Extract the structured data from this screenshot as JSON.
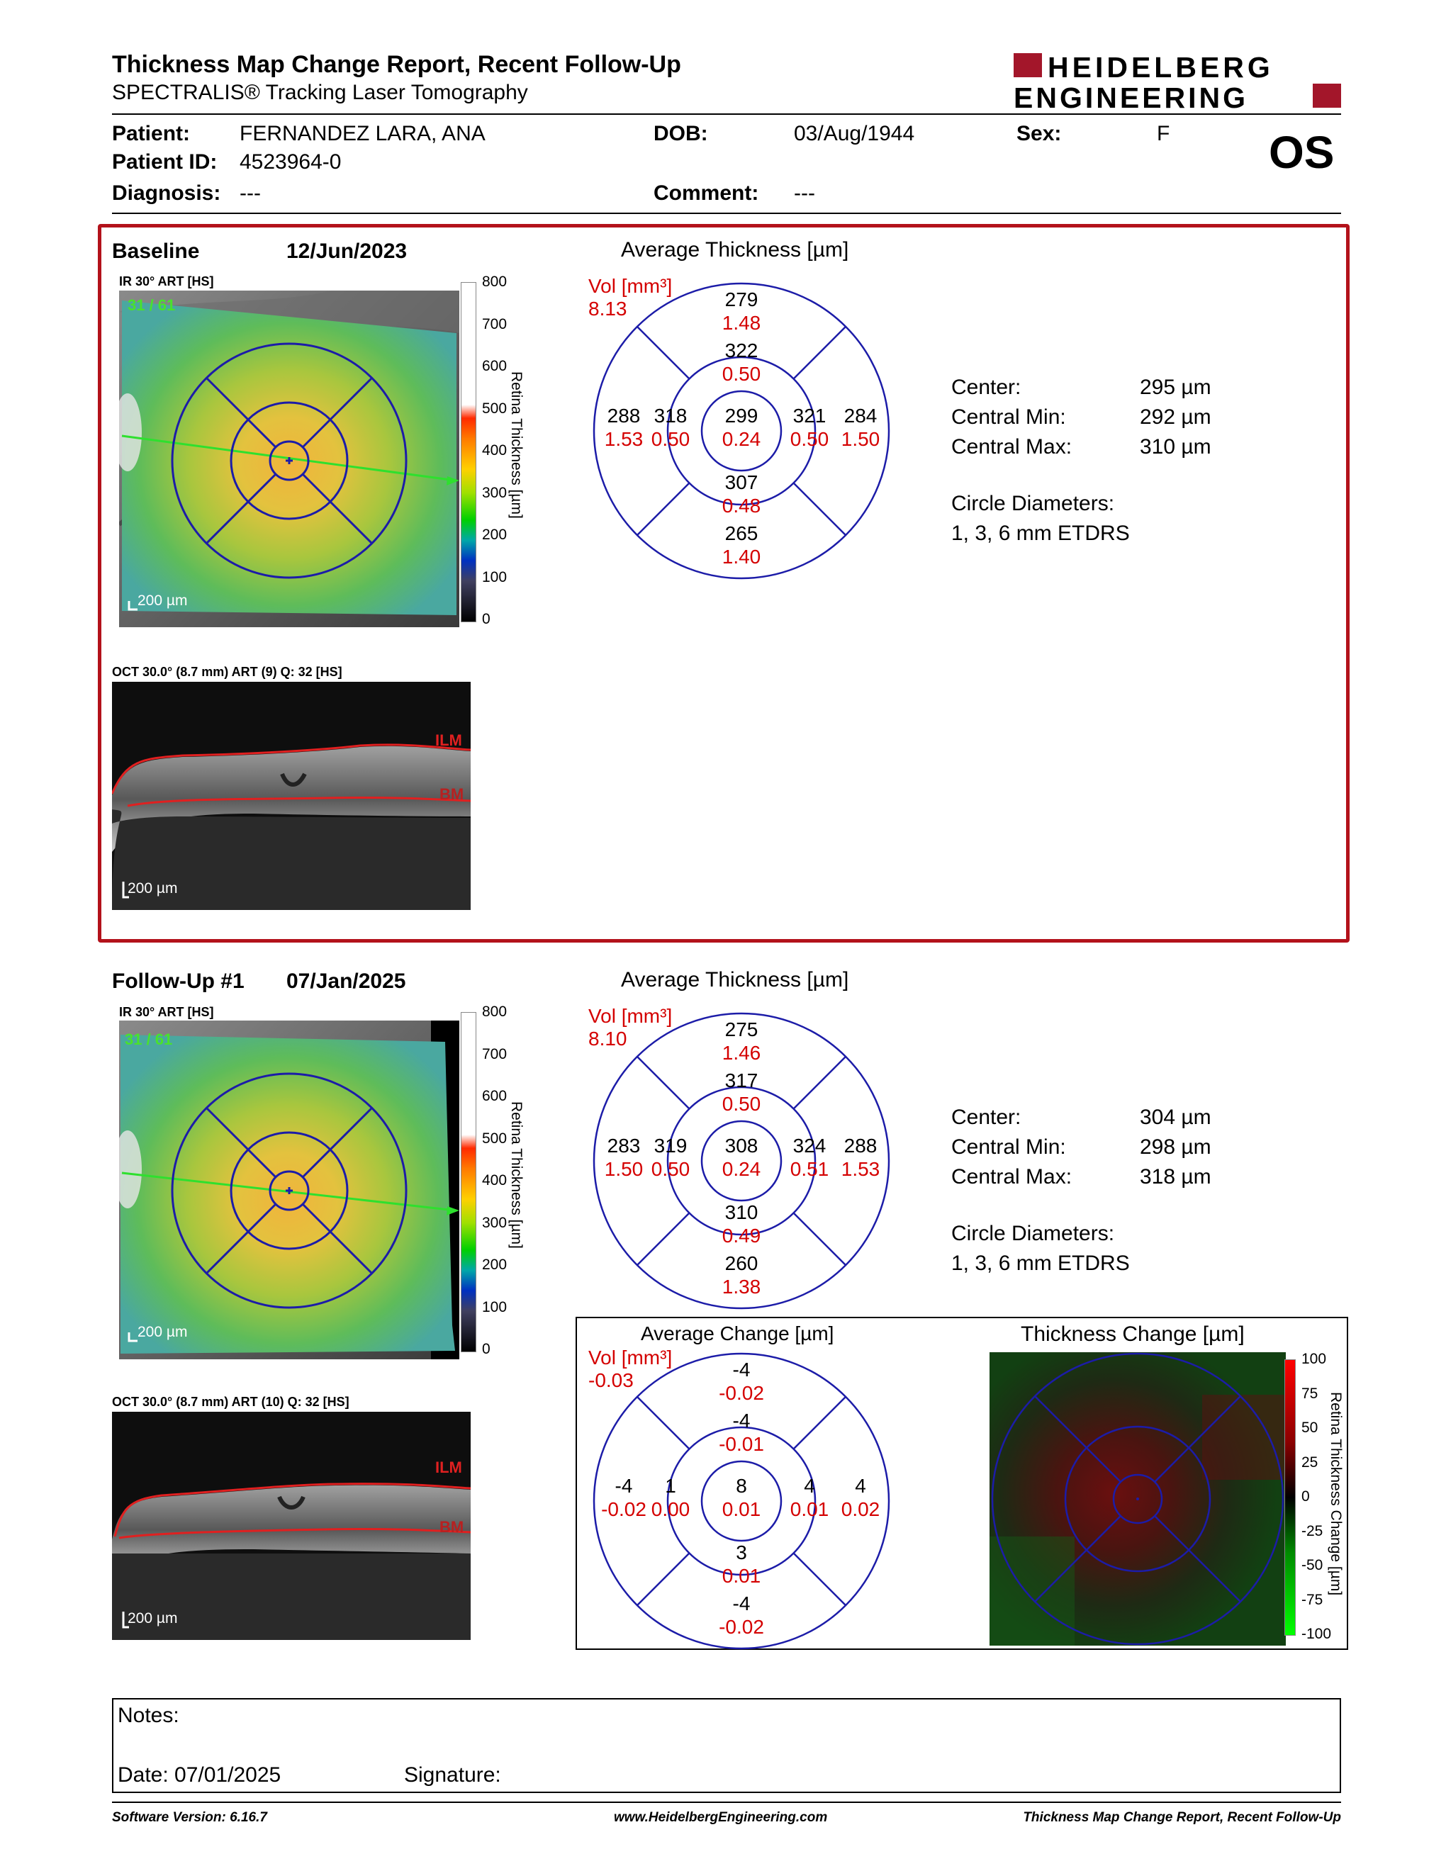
{
  "header": {
    "title": "Thickness Map Change Report, Recent Follow-Up",
    "subtitle": "SPECTRALIS® Tracking Laser Tomography",
    "logo_line1": "HEIDELBERG",
    "logo_line2": "ENGINEERING",
    "eye": "OS"
  },
  "patient": {
    "name_label": "Patient:",
    "name": "FERNANDEZ LARA, ANA",
    "id_label": "Patient ID:",
    "id": "4523964-0",
    "diagnosis_label": "Diagnosis:",
    "diagnosis": "---",
    "dob_label": "DOB:",
    "dob": "03/Aug/1944",
    "comment_label": "Comment:",
    "comment": "---",
    "sex_label": "Sex:",
    "sex": "F"
  },
  "baseline": {
    "label": "Baseline",
    "date": "12/Jun/2023",
    "ir_label": "IR 30° ART [HS]",
    "overlay_count": "31 / 61",
    "scale": "200 µm",
    "oct_label": "OCT 30.0° (8.7 mm) ART (9) Q: 32 [HS]",
    "oct_scale": "200 µm",
    "ilm": "ILM",
    "bm": "BM",
    "avg_title": "Average Thickness [µm]",
    "vol_label": "Vol [mm³]",
    "vol": "8.13",
    "etdrs": {
      "sup_out": "279",
      "sup_out_v": "1.48",
      "sup_in": "322",
      "sup_in_v": "0.50",
      "nas_out": "288",
      "nas_out_v": "1.53",
      "nas_in": "318",
      "nas_in_v": "0.50",
      "center": "299",
      "center_v": "0.24",
      "tmp_in": "321",
      "tmp_in_v": "0.50",
      "tmp_out": "284",
      "tmp_out_v": "1.50",
      "inf_in": "307",
      "inf_in_v": "0.48",
      "inf_out": "265",
      "inf_out_v": "1.40"
    },
    "stats": [
      {
        "label": "Center:",
        "value": "295 µm"
      },
      {
        "label": "Central Min:",
        "value": "292 µm"
      },
      {
        "label": "Central Max:",
        "value": "310 µm"
      }
    ],
    "circle_label": "Circle Diameters:",
    "circle_value": "1, 3, 6 mm ETDRS"
  },
  "followup": {
    "label": "Follow-Up #1",
    "date": "07/Jan/2025",
    "ir_label": "IR 30° ART [HS]",
    "overlay_count": "31 / 61",
    "scale": "200 µm",
    "oct_label": "OCT 30.0° (8.7 mm) ART (10) Q: 32 [HS]",
    "oct_scale": "200 µm",
    "ilm": "ILM",
    "bm": "BM",
    "avg_title": "Average Thickness [µm]",
    "vol_label": "Vol [mm³]",
    "vol": "8.10",
    "etdrs": {
      "sup_out": "275",
      "sup_out_v": "1.46",
      "sup_in": "317",
      "sup_in_v": "0.50",
      "nas_out": "283",
      "nas_out_v": "1.50",
      "nas_in": "319",
      "nas_in_v": "0.50",
      "center": "308",
      "center_v": "0.24",
      "tmp_in": "324",
      "tmp_in_v": "0.51",
      "tmp_out": "288",
      "tmp_out_v": "1.53",
      "inf_in": "310",
      "inf_in_v": "0.49",
      "inf_out": "260",
      "inf_out_v": "1.38"
    },
    "stats": [
      {
        "label": "Center:",
        "value": "304 µm"
      },
      {
        "label": "Central Min:",
        "value": "298 µm"
      },
      {
        "label": "Central Max:",
        "value": "318 µm"
      }
    ],
    "circle_label": "Circle Diameters:",
    "circle_value": "1, 3, 6 mm ETDRS"
  },
  "thickness_colorbar": {
    "ticks": [
      "800",
      "700",
      "600",
      "500",
      "400",
      "300",
      "200",
      "100",
      "0"
    ],
    "title": "Retina Thickness [µm]"
  },
  "change": {
    "avg_title": "Average Change [µm]",
    "vol_label": "Vol [mm³]",
    "vol": "-0.03",
    "etdrs": {
      "sup_out": "-4",
      "sup_out_v": "-0.02",
      "sup_in": "-4",
      "sup_in_v": "-0.01",
      "nas_out": "-4",
      "nas_out_v": "-0.02",
      "nas_in": "1",
      "nas_in_v": "0.00",
      "center": "8",
      "center_v": "0.01",
      "tmp_in": "4",
      "tmp_in_v": "0.01",
      "tmp_out": "4",
      "tmp_out_v": "0.02",
      "inf_in": "3",
      "inf_in_v": "0.01",
      "inf_out": "-4",
      "inf_out_v": "-0.02"
    },
    "map_title": "Thickness Change [µm]",
    "ticks": [
      "100",
      "75",
      "50",
      "25",
      "0",
      "-25",
      "-50",
      "-75",
      "-100"
    ],
    "axis_title": "Retina Thickness Change [µm]"
  },
  "notes": {
    "label": "Notes:",
    "date": "Date: 07/01/2025",
    "signature": "Signature:"
  },
  "footer": {
    "software": "Software Version: 6.16.7",
    "url": "www.HeidelbergEngineering.com",
    "report": "Thickness Map Change Report, Recent Follow-Up"
  },
  "colors": {
    "red": "#d40000",
    "blue": "#1c1ca8",
    "frame_red": "#b3121b",
    "logo_red": "#a3162a"
  }
}
